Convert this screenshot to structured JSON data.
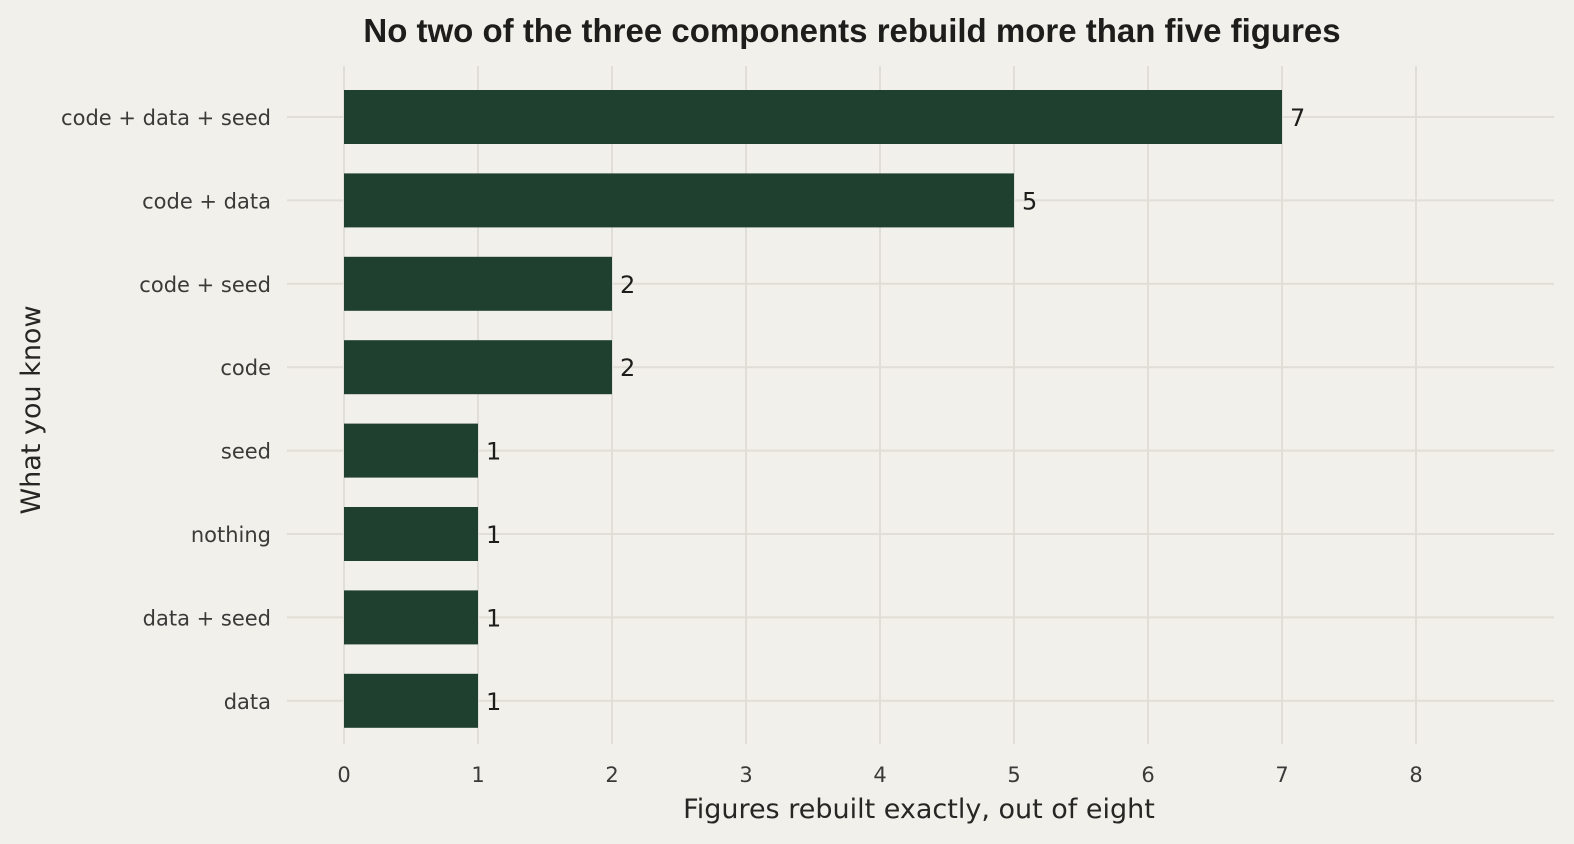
{
  "chart_data": {
    "type": "bar",
    "orientation": "horizontal",
    "title": "No two of the three components rebuild more than five figures",
    "xlabel": "Figures rebuilt exactly, out of eight",
    "ylabel": "What you know",
    "categories": [
      "code + data + seed",
      "code + data",
      "code + seed",
      "code",
      "seed",
      "nothing",
      "data + seed",
      "data"
    ],
    "values": [
      7,
      5,
      2,
      2,
      1,
      1,
      1,
      1
    ],
    "xlim": [
      0,
      8
    ],
    "xticks": [
      0,
      1,
      2,
      3,
      4,
      5,
      6,
      7,
      8
    ],
    "data_labels": true,
    "grid": true,
    "legend": "none",
    "bar_color": "#1f402e",
    "background_color": "#f2f0ea"
  }
}
